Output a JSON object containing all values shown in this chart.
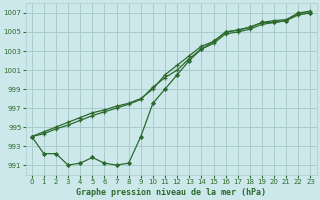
{
  "title": "",
  "xlabel": "Graphe pression niveau de la mer (hPa)",
  "background_color": "#cce8ea",
  "grid_color": "#aacccc",
  "line_color": "#2d6a2d",
  "text_color": "#2d6a2d",
  "xlim": [
    -0.5,
    23.5
  ],
  "ylim": [
    990.0,
    1008.0
  ],
  "yticks": [
    991,
    993,
    995,
    997,
    999,
    1001,
    1003,
    1005,
    1007
  ],
  "xticks": [
    0,
    1,
    2,
    3,
    4,
    5,
    6,
    7,
    8,
    9,
    10,
    11,
    12,
    13,
    14,
    15,
    16,
    17,
    18,
    19,
    20,
    21,
    22,
    23
  ],
  "series1_x": [
    0,
    1,
    2,
    3,
    4,
    5,
    6,
    7,
    8,
    9,
    10,
    11,
    12,
    13,
    14,
    15,
    16,
    17,
    18,
    19,
    20,
    21,
    22,
    23
  ],
  "series1_y": [
    994.0,
    994.5,
    995.0,
    995.5,
    996.0,
    996.5,
    996.8,
    997.2,
    997.5,
    998.0,
    999.0,
    1000.5,
    1001.5,
    1002.5,
    1003.5,
    1004.0,
    1005.0,
    1005.2,
    1005.5,
    1006.0,
    1006.2,
    1006.3,
    1007.0,
    1007.2
  ],
  "series2_x": [
    0,
    1,
    2,
    3,
    4,
    5,
    6,
    7,
    8,
    9,
    10,
    11,
    12,
    13,
    14,
    15,
    16,
    17,
    18,
    19,
    20,
    21,
    22,
    23
  ],
  "series2_y": [
    994.0,
    994.3,
    994.8,
    995.2,
    995.7,
    996.2,
    996.6,
    997.0,
    997.4,
    997.9,
    999.2,
    1000.2,
    1001.0,
    1002.2,
    1003.2,
    1003.8,
    1004.8,
    1005.0,
    1005.3,
    1005.8,
    1006.0,
    1006.2,
    1006.8,
    1007.0
  ],
  "series3_x": [
    0,
    1,
    2,
    3,
    4,
    5,
    6,
    7,
    8,
    9,
    10,
    11,
    12,
    13,
    14,
    15,
    16,
    17,
    18,
    19,
    20,
    21,
    22,
    23
  ],
  "series3_y": [
    994.0,
    992.2,
    992.2,
    991.0,
    991.2,
    991.8,
    991.2,
    991.0,
    991.2,
    994.0,
    997.5,
    999.0,
    1000.5,
    1002.0,
    1003.2,
    1004.0,
    1005.0,
    1005.2,
    1005.5,
    1006.0,
    1006.0,
    1006.2,
    1007.0,
    1007.0
  ]
}
